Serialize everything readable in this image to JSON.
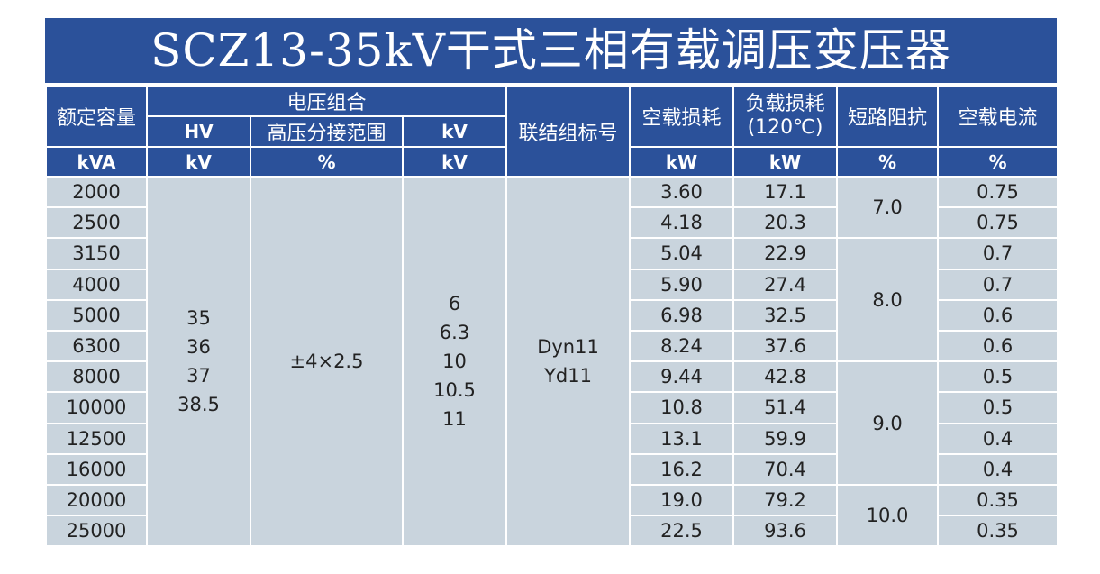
{
  "title": "SCZ13-35kV干式三相有载调压变压器",
  "header": {
    "rated_capacity": "额定容量",
    "voltage_group": "电压组合",
    "hv": "HV",
    "tap_range": "高压分接范围",
    "lv": "kV",
    "vector_group": "联结组标号",
    "no_load_loss": "空载损耗",
    "load_loss": "负载损耗",
    "load_loss_temp": "(120℃)",
    "impedance": "短路阻抗",
    "no_load_current": "空载电流"
  },
  "units": [
    "kVA",
    "kV",
    "%",
    "kV",
    "kW",
    "kW",
    "%",
    "%"
  ],
  "table": {
    "capacity": [
      "2000",
      "2500",
      "3150",
      "4000",
      "5000",
      "6300",
      "8000",
      "10000",
      "12500",
      "16000",
      "20000",
      "25000"
    ],
    "hv_voltages": [
      "35",
      "36",
      "37",
      "38.5"
    ],
    "tap_range": "±4×2.5",
    "lv_voltages": [
      "6",
      "6.3",
      "10",
      "10.5",
      "11"
    ],
    "vector_groups": [
      "Dyn11",
      "Yd11"
    ],
    "no_load_loss": [
      "3.60",
      "4.18",
      "5.04",
      "5.90",
      "6.98",
      "8.24",
      "9.44",
      "10.8",
      "13.1",
      "16.2",
      "19.0",
      "22.5"
    ],
    "load_loss": [
      "17.1",
      "20.3",
      "22.9",
      "27.4",
      "32.5",
      "37.6",
      "42.8",
      "51.4",
      "59.9",
      "70.4",
      "79.2",
      "93.6"
    ],
    "impedance": [
      "7.0",
      "8.0",
      "9.0",
      "10.0"
    ],
    "no_load_current": [
      "0.75",
      "0.75",
      "0.7",
      "0.7",
      "0.6",
      "0.6",
      "0.5",
      "0.5",
      "0.4",
      "0.4",
      "0.35",
      "0.35"
    ]
  }
}
